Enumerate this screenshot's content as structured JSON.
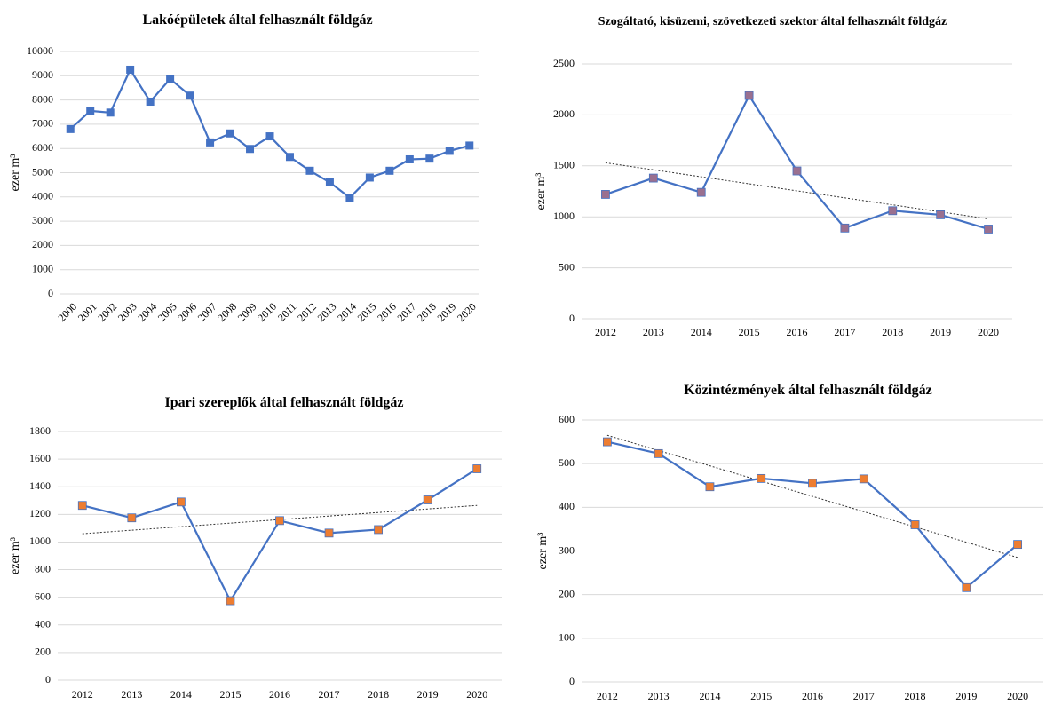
{
  "chart_data": [
    {
      "type": "line",
      "title": "Lakóépületek által felhasznált földgáz",
      "ylabel": "ezer m³",
      "categories": [
        "2000",
        "2001",
        "2002",
        "2003",
        "2004",
        "2005",
        "2006",
        "2007",
        "2008",
        "2009",
        "2010",
        "2011",
        "2012",
        "2013",
        "2014",
        "2015",
        "2016",
        "2017",
        "2018",
        "2019",
        "2020"
      ],
      "series": [
        {
          "color": "#4472c4",
          "marker_color": "#4472c4",
          "values": [
            6800,
            7550,
            7480,
            9250,
            7930,
            8870,
            8180,
            6250,
            6620,
            5980,
            6500,
            5650,
            5080,
            4600,
            3970,
            4800,
            5080,
            5550,
            5580,
            5900,
            6120
          ]
        }
      ],
      "ylim": [
        0,
        10000
      ],
      "yticks": [
        0,
        1000,
        2000,
        3000,
        4000,
        5000,
        6000,
        7000,
        8000,
        9000,
        10000
      ],
      "grid": true,
      "rotate_x_labels": true
    },
    {
      "type": "line",
      "title": "Szogáltató, kisüzemi,  szövetkezeti szektor által felhasznált földgáz",
      "ylabel": "ezer m³",
      "categories": [
        "2012",
        "2013",
        "2014",
        "2015",
        "2016",
        "2017",
        "2018",
        "2019",
        "2020"
      ],
      "series": [
        {
          "color": "#4472c4",
          "marker_color": "#9a7090",
          "values": [
            1220,
            1380,
            1240,
            2190,
            1450,
            890,
            1060,
            1020,
            880
          ]
        }
      ],
      "trendline": [
        1530,
        980
      ],
      "ylim": [
        0,
        2500
      ],
      "yticks": [
        0,
        500,
        1000,
        1500,
        2000,
        2500
      ],
      "grid": true
    },
    {
      "type": "line",
      "title": "Ipari szereplők által felhasznált földgáz",
      "ylabel": "ezer m³",
      "categories": [
        "2012",
        "2013",
        "2014",
        "2015",
        "2016",
        "2017",
        "2018",
        "2019",
        "2020"
      ],
      "series": [
        {
          "color": "#4472c4",
          "marker_color": "#ed7d31",
          "values": [
            1265,
            1175,
            1290,
            575,
            1155,
            1065,
            1090,
            1305,
            1530
          ]
        }
      ],
      "trendline": [
        1060,
        1265
      ],
      "ylim": [
        0,
        1800
      ],
      "yticks": [
        0,
        200,
        400,
        600,
        800,
        1000,
        1200,
        1400,
        1600,
        1800
      ],
      "grid": true
    },
    {
      "type": "line",
      "title": "Közintézmények által felhasznált földgáz",
      "ylabel": "ezer m³",
      "categories": [
        "2012",
        "2013",
        "2014",
        "2015",
        "2016",
        "2017",
        "2018",
        "2019",
        "2020"
      ],
      "series": [
        {
          "color": "#4472c4",
          "marker_color": "#ed7d31",
          "values": [
            550,
            523,
            447,
            466,
            455,
            465,
            360,
            216,
            315
          ]
        }
      ],
      "trendline": [
        565,
        285
      ],
      "ylim": [
        0,
        600
      ],
      "yticks": [
        0,
        100,
        200,
        300,
        400,
        500,
        600
      ],
      "grid": true
    }
  ]
}
